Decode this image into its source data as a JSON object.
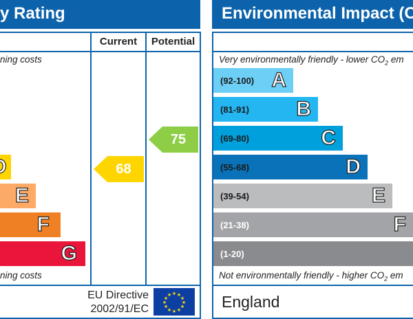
{
  "energy": {
    "title": "y Rating",
    "col_current": "Current",
    "col_potential": "Potential",
    "top_note": "ning costs",
    "bottom_note": "ning costs",
    "bands": [
      {
        "letter": "D",
        "color": "#ffd500"
      },
      {
        "letter": "E",
        "color": "#fcaa65"
      },
      {
        "letter": "F",
        "color": "#ef8023"
      },
      {
        "letter": "G",
        "color": "#e9153b"
      }
    ],
    "current": {
      "value": "68",
      "color": "#ffd500"
    },
    "potential": {
      "value": "75",
      "color": "#8dce46"
    },
    "eu_line1": "EU Directive",
    "eu_line2": "2002/91/EC"
  },
  "environmental": {
    "title": "Environmental Impact (C",
    "top_note": "Very environmentally friendly - lower CO",
    "top_note_sub": "2",
    "top_note_tail": " em",
    "bottom_note": "Not environmentally friendly - higher CO",
    "bottom_note_sub": "2",
    "bottom_note_tail": " em",
    "bands": [
      {
        "range": "(92-100)",
        "letter": "A",
        "color": "#6ecff6"
      },
      {
        "range": "(81-91)",
        "letter": "B",
        "color": "#23b6f1"
      },
      {
        "range": "(69-80)",
        "letter": "C",
        "color": "#00a0dc"
      },
      {
        "range": "(55-68)",
        "letter": "D",
        "color": "#0a72b9"
      },
      {
        "range": "(39-54)",
        "letter": "E",
        "color": "#bbbcbe"
      },
      {
        "range": "(21-38)",
        "letter": "F",
        "color": "#a3a4a7"
      },
      {
        "range": "(1-20)",
        "letter": "G",
        "color": "#8a8b8e"
      }
    ],
    "country": "England"
  },
  "icons": {
    "eu_flag": "eu-flag-icon"
  }
}
